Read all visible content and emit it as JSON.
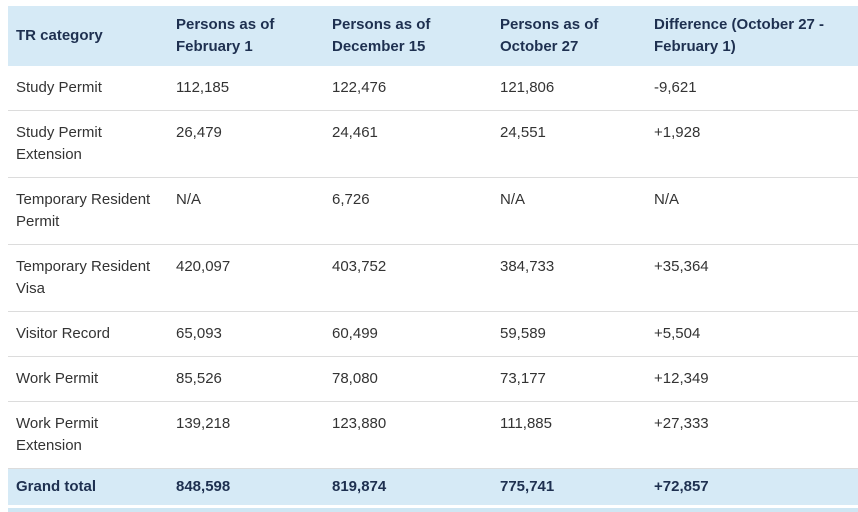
{
  "table": {
    "columns": [
      {
        "label": "TR category"
      },
      {
        "label": "Persons as of February 1"
      },
      {
        "label": "Persons as of December 15"
      },
      {
        "label": "Persons as of October 27"
      },
      {
        "label": "Difference (October 27 - February 1)"
      }
    ],
    "rows": [
      {
        "category": "Study Permit",
        "feb1": "112,185",
        "dec15": "122,476",
        "oct27": "121,806",
        "difference": "-9,621"
      },
      {
        "category": "Study Permit Extension",
        "feb1": "26,479",
        "dec15": "24,461",
        "oct27": "24,551",
        "difference": "+1,928"
      },
      {
        "category": "Temporary Resident Permit",
        "feb1": "N/A",
        "dec15": "6,726",
        "oct27": "N/A",
        "difference": "N/A"
      },
      {
        "category": "Temporary Resident Visa",
        "feb1": "420,097",
        "dec15": "403,752",
        "oct27": "384,733",
        "difference": "+35,364"
      },
      {
        "category": "Visitor Record",
        "feb1": "65,093",
        "dec15": "60,499",
        "oct27": "59,589",
        "difference": "+5,504"
      },
      {
        "category": "Work Permit",
        "feb1": "85,526",
        "dec15": "78,080",
        "oct27": "73,177",
        "difference": "+12,349"
      },
      {
        "category": "Work Permit Extension",
        "feb1": "139,218",
        "dec15": "123,880",
        "oct27": "111,885",
        "difference": "+27,333"
      }
    ],
    "total": {
      "category": "Grand total",
      "feb1": "848,598",
      "dec15": "819,874",
      "oct27": "775,741",
      "difference": "+72,857"
    }
  },
  "colors": {
    "header_background": "#d6eaf6",
    "total_row_background": "#d6eaf6",
    "header_text": "#1e3050",
    "body_text": "#333333",
    "row_border": "#dcdcdc",
    "bottom_strip": "#cfe6f3"
  },
  "chart_data": {
    "type": "table",
    "title": "",
    "columns": [
      "TR category",
      "Persons as of February 1",
      "Persons as of December 15",
      "Persons as of October 27",
      "Difference (October 27 - February 1)"
    ],
    "rows": [
      [
        "Study Permit",
        "112,185",
        "122,476",
        "121,806",
        "-9,621"
      ],
      [
        "Study Permit Extension",
        "26,479",
        "24,461",
        "24,551",
        "+1,928"
      ],
      [
        "Temporary Resident Permit",
        "N/A",
        "6,726",
        "N/A",
        "N/A"
      ],
      [
        "Temporary Resident Visa",
        "420,097",
        "403,752",
        "384,733",
        "+35,364"
      ],
      [
        "Visitor Record",
        "65,093",
        "60,499",
        "59,589",
        "+5,504"
      ],
      [
        "Work Permit",
        "85,526",
        "78,080",
        "73,177",
        "+12,349"
      ],
      [
        "Work Permit Extension",
        "139,218",
        "123,880",
        "111,885",
        "+27,333"
      ],
      [
        "Grand total",
        "848,598",
        "819,874",
        "775,741",
        "+72,857"
      ]
    ]
  }
}
